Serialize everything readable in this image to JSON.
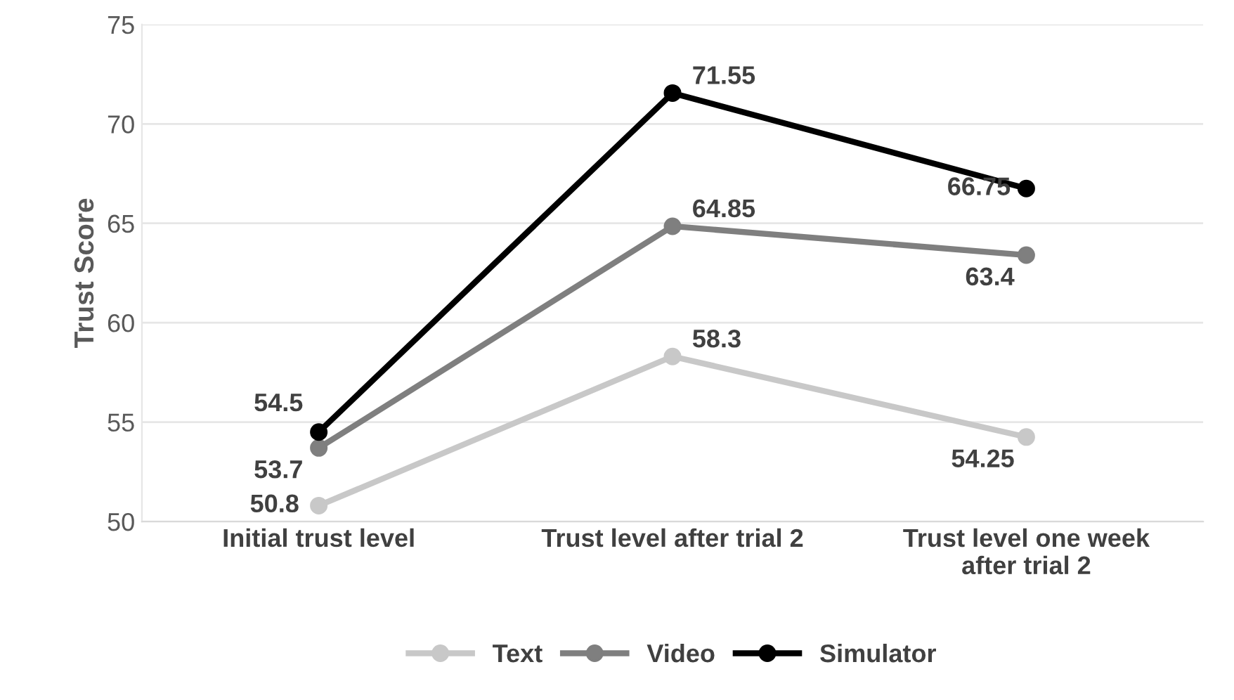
{
  "chart_data": {
    "type": "line",
    "ylabel": "Trust Score",
    "categories": [
      "Initial trust level",
      "Trust level after trial 2",
      "Trust level one week\nafter trial 2"
    ],
    "series": [
      {
        "name": "Text",
        "color": "#c8c8c8",
        "values": [
          50.8,
          58.3,
          54.25
        ]
      },
      {
        "name": "Video",
        "color": "#7f7f7f",
        "values": [
          53.7,
          64.85,
          63.4
        ]
      },
      {
        "name": "Simulator",
        "color": "#000000",
        "values": [
          54.5,
          71.55,
          66.75
        ]
      }
    ],
    "ylim": [
      50,
      75
    ],
    "yticks": [
      50,
      55,
      60,
      65,
      70,
      75
    ],
    "grid": "y",
    "legend": "bottom",
    "marker": "circle",
    "line_style": "solid",
    "data_labels": true
  }
}
